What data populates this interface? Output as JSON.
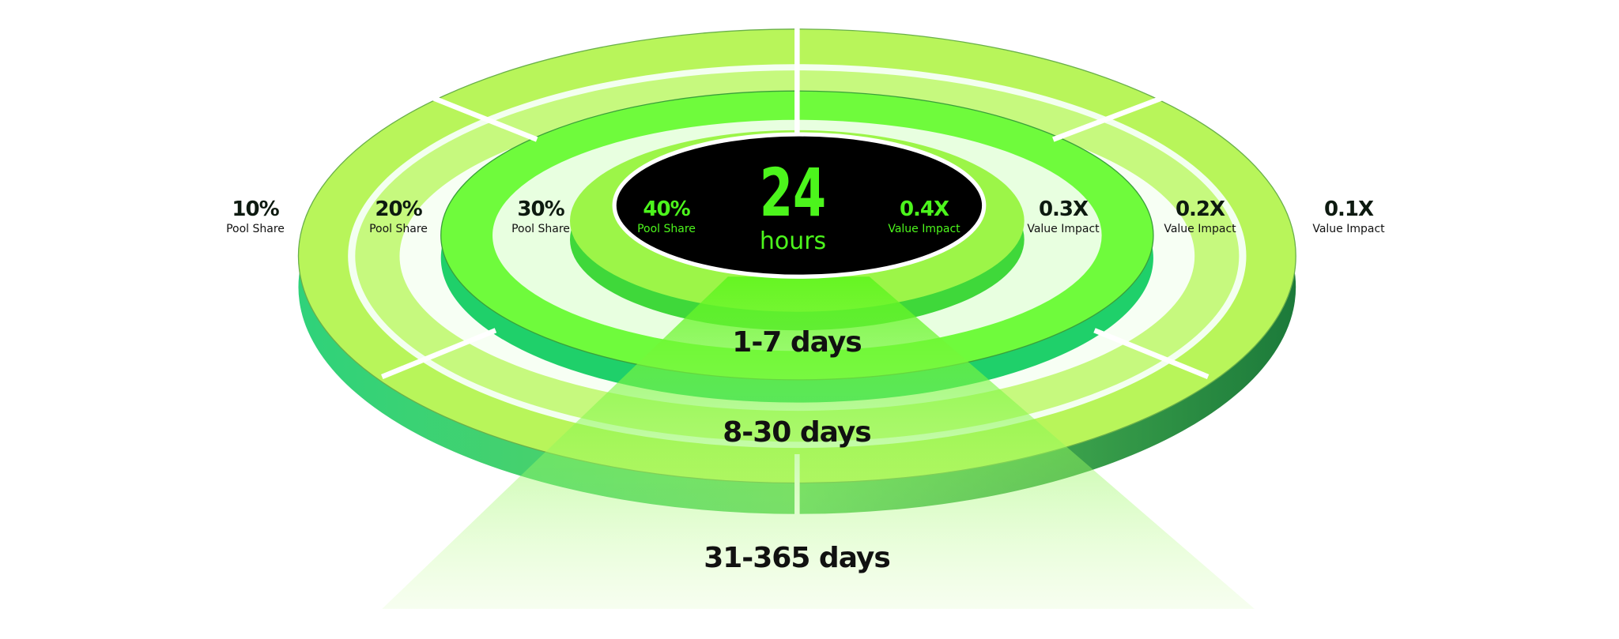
{
  "center": {
    "value": "24",
    "unit": "hours"
  },
  "pool_share": [
    {
      "value": "10%",
      "label": "Pool  Share"
    },
    {
      "value": "20%",
      "label": "Pool  Share"
    },
    {
      "value": "30%",
      "label": "Pool  Share"
    },
    {
      "value": "40%",
      "label": "Pool  Share"
    }
  ],
  "value_impact": [
    {
      "value": "0.4X",
      "label": "Value Impact"
    },
    {
      "value": "0.3X",
      "label": "Value Impact"
    },
    {
      "value": "0.2X",
      "label": "Value Impact"
    },
    {
      "value": "0.1X",
      "label": "Value Impact"
    }
  ],
  "durations": [
    "1-7 days",
    "8-30 days",
    "31-365 days"
  ],
  "colors": {
    "accent": "#4cf51c",
    "ring_light": "#b8f55a",
    "ring_side": "#2e9e5a",
    "center": "#000000"
  }
}
